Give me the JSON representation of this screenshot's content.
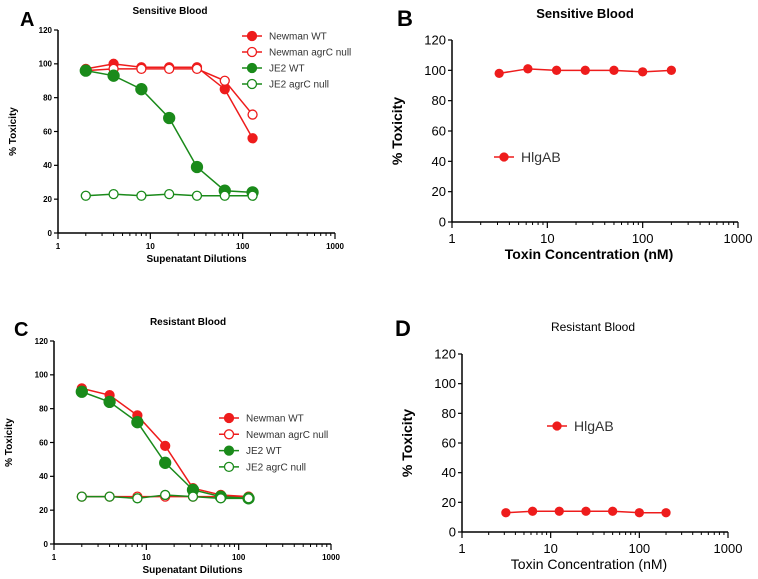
{
  "colors": {
    "red": "#ee1c1c",
    "green": "#1a8a1a"
  },
  "chart_data": [
    {
      "panel": "A",
      "type": "line",
      "title": "Sensitive Blood",
      "xlabel": "Supenatant Dilutions",
      "ylabel": "% Toxicity",
      "xscale": "log",
      "xlim": [
        1,
        1000
      ],
      "ylim": [
        0,
        120
      ],
      "yticks": [
        "0",
        "20",
        "40",
        "60",
        "80",
        "100",
        "120"
      ],
      "xticks": [
        "1",
        "10",
        "100",
        "1000"
      ],
      "legend": "top-right",
      "x": [
        2,
        4,
        8,
        16,
        32,
        64,
        128
      ],
      "series": [
        {
          "name": "Newman WT",
          "color": "red",
          "filled": true,
          "values": [
            97,
            100,
            98,
            98,
            98,
            85,
            56
          ]
        },
        {
          "name": "Newman agrC null",
          "color": "red",
          "filled": false,
          "values": [
            96,
            97,
            97,
            97,
            97,
            90,
            70
          ]
        },
        {
          "name": "JE2 WT",
          "color": "green",
          "filled": true,
          "values": [
            96,
            93,
            85,
            68,
            39,
            25,
            24
          ]
        },
        {
          "name": "JE2 agrC null",
          "color": "green",
          "filled": false,
          "values": [
            22,
            23,
            22,
            23,
            22,
            22,
            22
          ]
        }
      ]
    },
    {
      "panel": "B",
      "type": "line",
      "title": "Sensitive Blood",
      "xlabel": "Toxin Concentration (nM)",
      "ylabel": "% Toxicity",
      "xscale": "log",
      "xlim": [
        1,
        1000
      ],
      "ylim": [
        0,
        120
      ],
      "yticks": [
        "0",
        "20",
        "40",
        "60",
        "80",
        "100",
        "120"
      ],
      "xticks": [
        "1",
        "10",
        "100",
        "1000"
      ],
      "legend": "center-left",
      "x": [
        3.125,
        6.25,
        12.5,
        25,
        50,
        100,
        200
      ],
      "series": [
        {
          "name": "HlgAB",
          "color": "red",
          "filled": true,
          "values": [
            98,
            101,
            100,
            100,
            100,
            99,
            100
          ]
        }
      ]
    },
    {
      "panel": "C",
      "type": "line",
      "title": "Resistant Blood",
      "xlabel": "Supenatant Dilutions",
      "ylabel": "% Toxicity",
      "xscale": "log",
      "xlim": [
        1,
        1000
      ],
      "ylim": [
        0,
        120
      ],
      "yticks": [
        "0",
        "20",
        "40",
        "60",
        "80",
        "100",
        "120"
      ],
      "xticks": [
        "1",
        "10",
        "100",
        "1000"
      ],
      "legend": "right",
      "x": [
        2,
        4,
        8,
        16,
        32,
        64,
        128
      ],
      "series": [
        {
          "name": "Newman WT",
          "color": "red",
          "filled": true,
          "values": [
            92,
            88,
            76,
            58,
            33,
            29,
            28
          ]
        },
        {
          "name": "Newman agrC null",
          "color": "red",
          "filled": false,
          "values": [
            28,
            28,
            28,
            28,
            28,
            28,
            28
          ]
        },
        {
          "name": "JE2 WT",
          "color": "green",
          "filled": true,
          "values": [
            90,
            84,
            72,
            48,
            32,
            28,
            27
          ]
        },
        {
          "name": "JE2 agrC null",
          "color": "green",
          "filled": false,
          "values": [
            28,
            28,
            27,
            29,
            28,
            27,
            27
          ]
        }
      ]
    },
    {
      "panel": "D",
      "type": "line",
      "title": "Resistant Blood",
      "xlabel": "Toxin Concentration (nM)",
      "ylabel": "% Toxicity",
      "xscale": "log",
      "xlim": [
        1,
        1000
      ],
      "ylim": [
        0,
        120
      ],
      "yticks": [
        "0",
        "20",
        "40",
        "60",
        "80",
        "100",
        "120"
      ],
      "xticks": [
        "1",
        "10",
        "100",
        "1000"
      ],
      "legend": "center",
      "x": [
        3.125,
        6.25,
        12.5,
        25,
        50,
        100,
        200
      ],
      "series": [
        {
          "name": "HlgAB",
          "color": "red",
          "filled": true,
          "values": [
            13,
            14,
            14,
            14,
            14,
            13,
            13
          ]
        }
      ]
    }
  ]
}
